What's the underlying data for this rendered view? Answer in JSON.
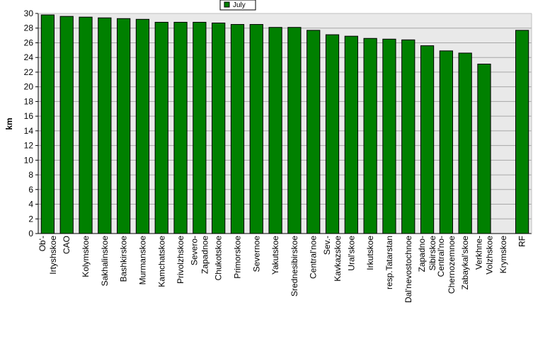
{
  "chart_data": {
    "type": "bar",
    "ylabel": "km",
    "xlabel": "",
    "title": "",
    "ylim": [
      0,
      30
    ],
    "yticks": [
      0,
      2,
      4,
      6,
      8,
      10,
      12,
      14,
      16,
      18,
      20,
      22,
      24,
      26,
      28,
      30
    ],
    "grid": true,
    "legend_position": "top-center",
    "bar_color": "#008000",
    "plot_background": "#e9e9e9",
    "categories": [
      "Ob'-Irtyshskoe",
      "CAO",
      "Kolymskoe",
      "Sakhalinskoe",
      "Bashkirskoe",
      "Murmanskoe",
      "Kamchatskoe",
      "Privolzhskoe",
      "Severo-Zapadnoe",
      "Chukotskoe",
      "Primorskoe",
      "Severnoe",
      "Yakutskoe",
      "Srednesibirskoe",
      "Central'noe",
      "Sev.-Kavkazskoe",
      "Ural'skoe",
      "Irkutskoe",
      "resp.Tatarstan",
      "Dal'nevostochnoe",
      "Zapadno-Sibirskoe",
      "Central'no-Chernozemnoe",
      "Zabaykal'skoe",
      "Verkhne-Volzhskoe",
      "Krymskoe",
      "RF"
    ],
    "tick_labels": [
      [
        "Ob'-",
        "Irtyshskoe"
      ],
      [
        "CAO"
      ],
      [
        "Kolymskoe"
      ],
      [
        "Sakhalinskoe"
      ],
      [
        "Bashkirskoe"
      ],
      [
        "Murmanskoe"
      ],
      [
        "Kamchatskoe"
      ],
      [
        "Privolzhskoe"
      ],
      [
        "Severo-",
        "Zapadnoe"
      ],
      [
        "Chukotskoe"
      ],
      [
        "Primorskoe"
      ],
      [
        "Severnoe"
      ],
      [
        "Yakutskoe"
      ],
      [
        "Srednesibirskoe"
      ],
      [
        "Central'noe"
      ],
      [
        "Sev.-",
        "Kavkazskoe"
      ],
      [
        "Ural'skoe"
      ],
      [
        "Irkutskoe"
      ],
      [
        "resp.Tatarstan"
      ],
      [
        "Dal'nevostochnoe"
      ],
      [
        "Zapadno-",
        "Sibirskoe"
      ],
      [
        "Central'no-",
        "Chernozemnoe"
      ],
      [
        "Zabaykal'skoe"
      ],
      [
        "Verkhne-",
        "Volzhskoe"
      ],
      [
        "Krymskoe"
      ],
      [
        "RF"
      ]
    ],
    "series": [
      {
        "name": "July",
        "values": [
          29.8,
          29.6,
          29.5,
          29.4,
          29.3,
          29.2,
          28.8,
          28.8,
          28.8,
          28.7,
          28.5,
          28.5,
          28.1,
          28.1,
          27.7,
          27.1,
          26.9,
          26.6,
          26.5,
          26.4,
          25.6,
          24.9,
          24.6,
          23.1,
          null,
          27.7
        ]
      }
    ]
  }
}
